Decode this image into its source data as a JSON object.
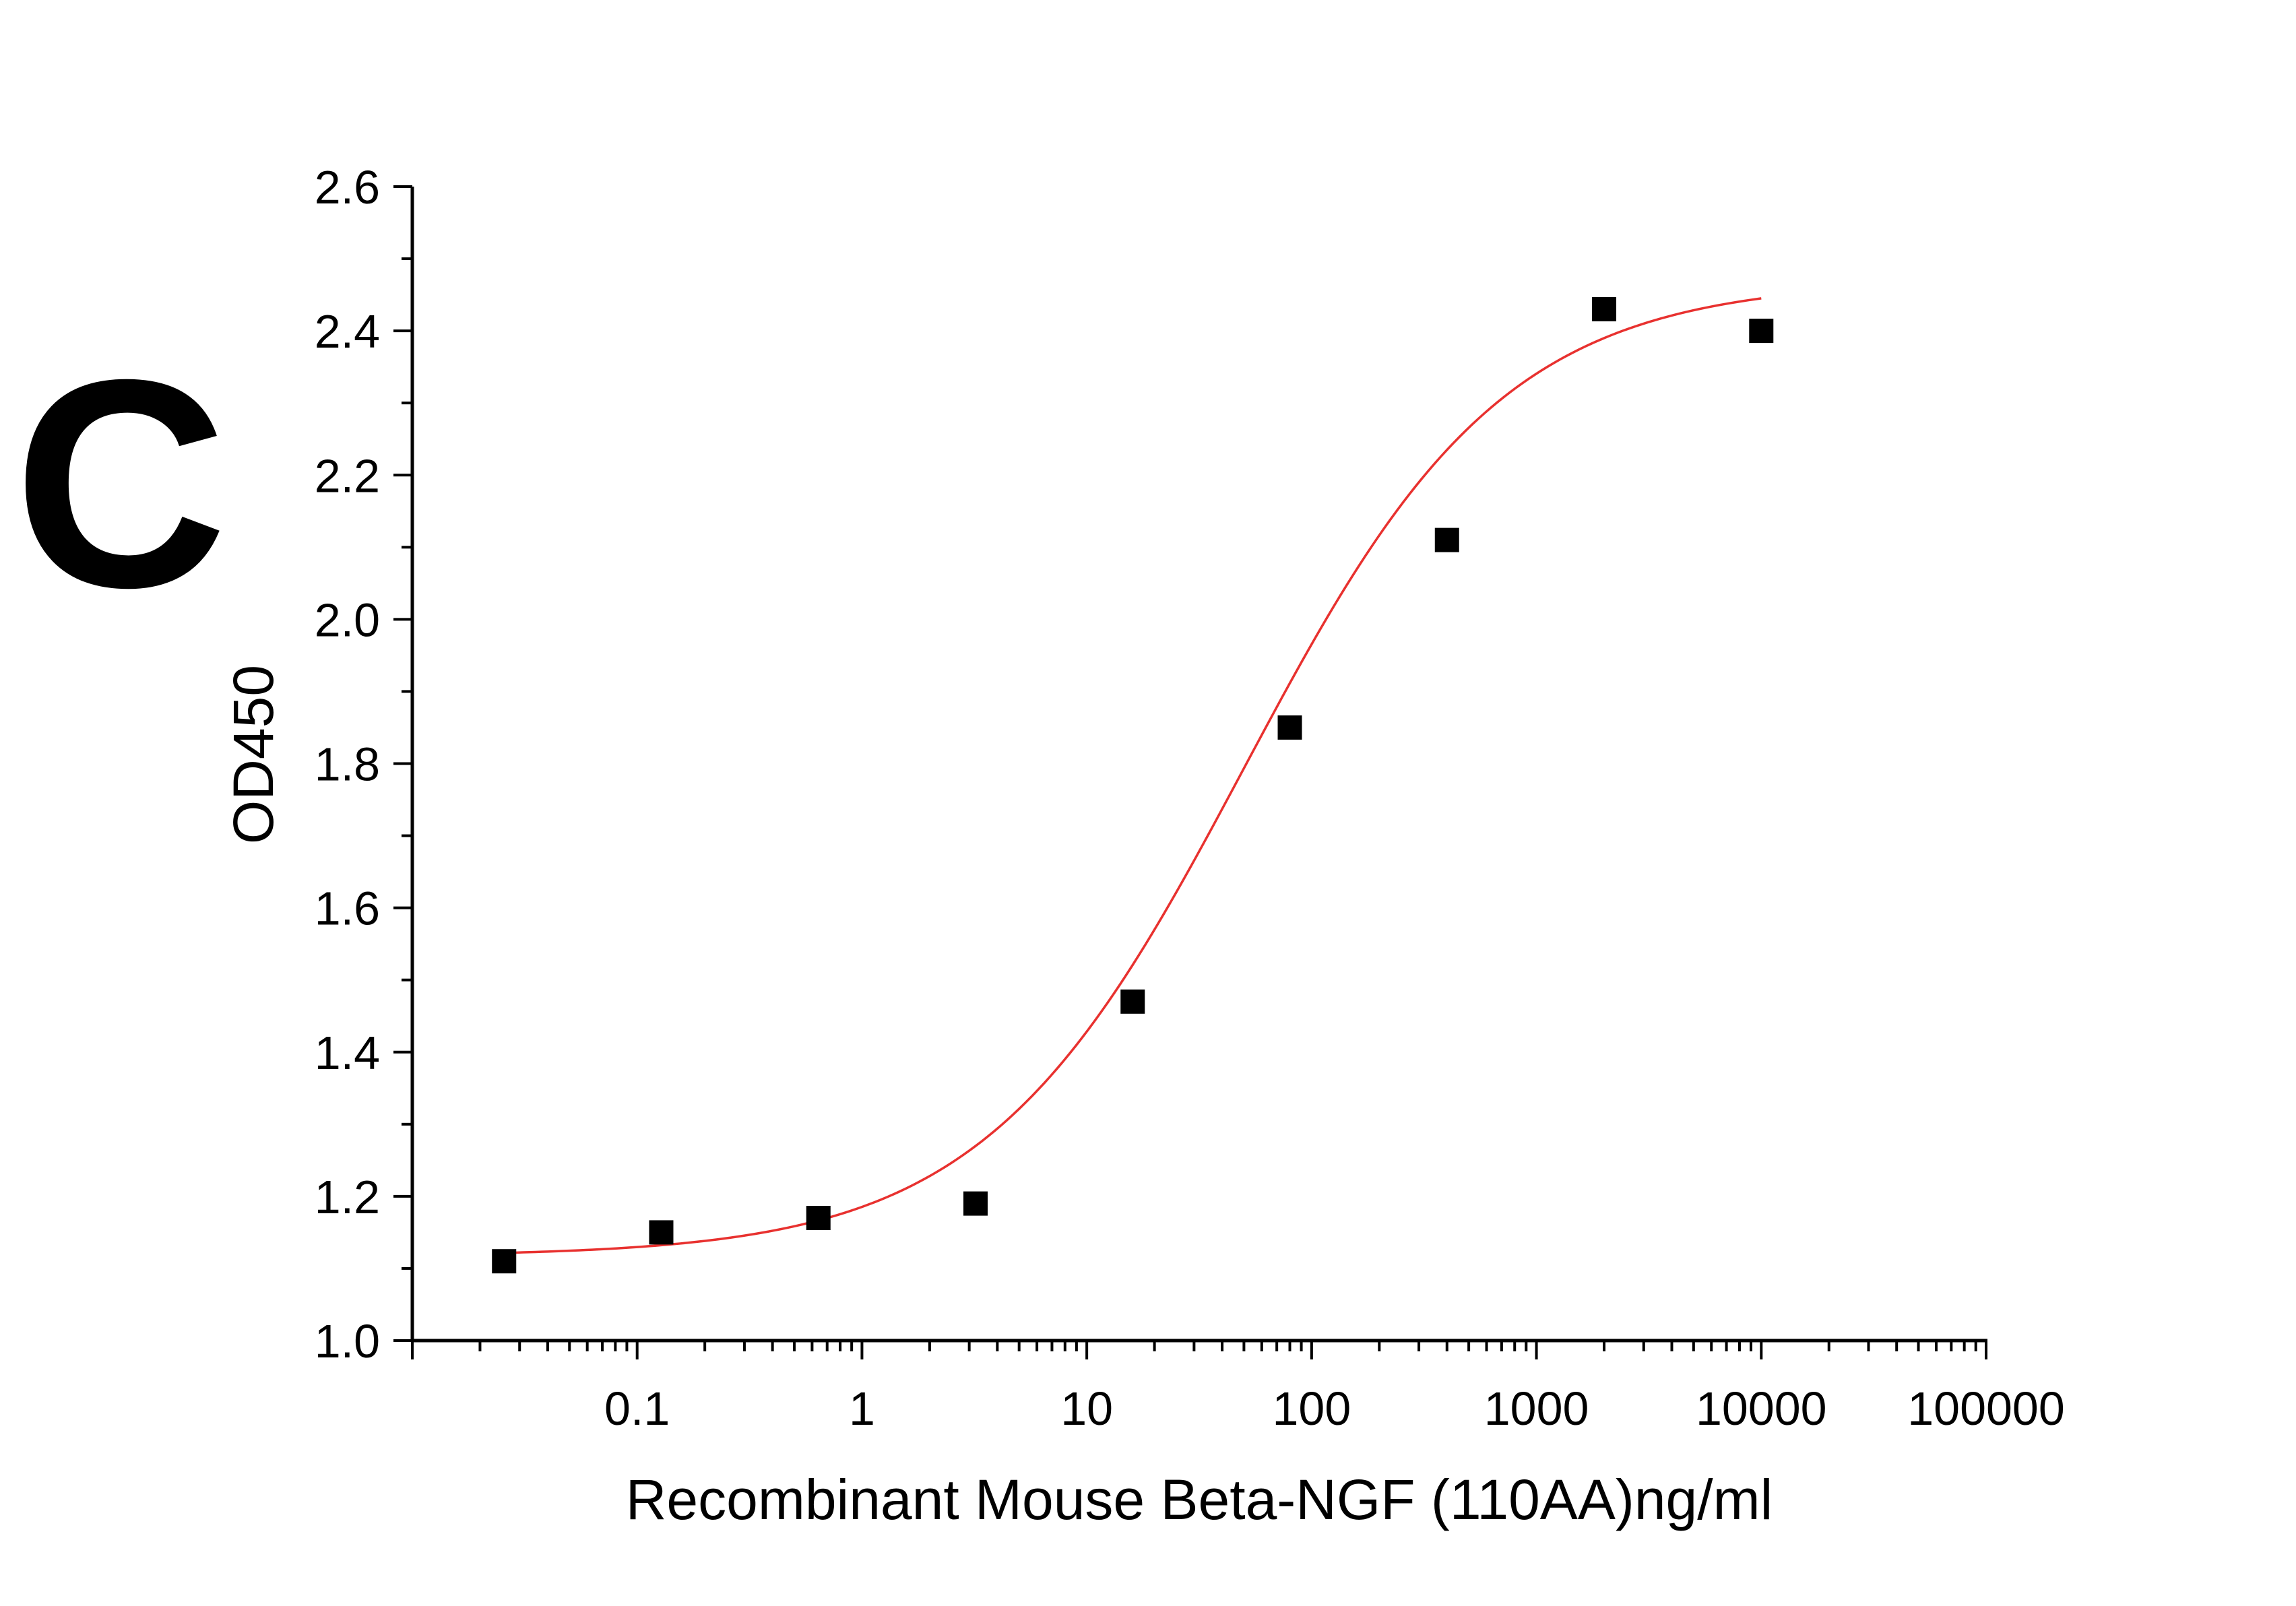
{
  "panel_label": "C",
  "chart_data": {
    "type": "scatter",
    "xlabel": "Recombinant Mouse Beta-NGF (110AA)ng/ml",
    "ylabel": "OD450",
    "x_scale": "log",
    "xlim": [
      0.01,
      100000
    ],
    "ylim": [
      1.0,
      2.6
    ],
    "x_ticks": [
      0.1,
      1,
      10,
      100,
      1000,
      10000,
      100000
    ],
    "x_tick_labels": [
      "0.1",
      "1",
      "10",
      "100",
      "1000",
      "10000",
      "100000"
    ],
    "y_ticks": [
      1.0,
      1.2,
      1.4,
      1.6,
      1.8,
      2.0,
      2.2,
      2.4,
      2.6
    ],
    "y_tick_labels": [
      "1.0",
      "1.2",
      "1.4",
      "1.6",
      "1.8",
      "2.0",
      "2.2",
      "2.4",
      "2.6"
    ],
    "grid": false,
    "legend": "none",
    "colors": {
      "points": "#000000",
      "fit": "#e8312f",
      "axis": "#000000"
    },
    "series": [
      {
        "x": [
          0.0256,
          0.128,
          0.64,
          3.2,
          16,
          80,
          400,
          2000,
          10000
        ],
        "y": [
          1.11,
          1.15,
          1.17,
          1.19,
          1.47,
          1.85,
          2.11,
          2.43,
          2.4
        ],
        "marker": "square"
      }
    ],
    "fit_curve": {
      "model": "4PL",
      "bottom": 1.117,
      "top": 2.47,
      "ec50": 50,
      "hill": 0.75
    }
  }
}
